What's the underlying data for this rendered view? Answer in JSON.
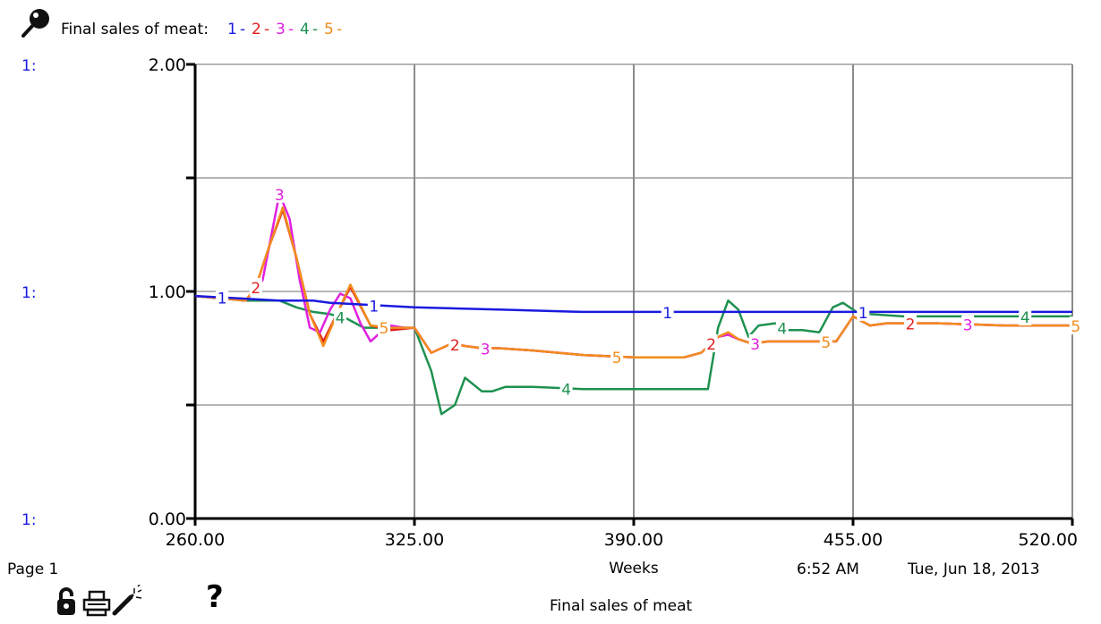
{
  "legend": {
    "title": "Final sales of meat:",
    "entries": [
      {
        "label": "1",
        "sep": "-",
        "color": "#1a1ae0"
      },
      {
        "label": "2",
        "sep": "-",
        "color": "#e02020"
      },
      {
        "label": "3",
        "sep": "-",
        "color": "#e020e0"
      },
      {
        "label": "4",
        "sep": "-",
        "color": "#1e9150"
      },
      {
        "label": "5",
        "sep": "-",
        "color": "#f28c1c"
      }
    ]
  },
  "axis_prefix": "1:",
  "footer": {
    "page": "Page 1",
    "time": "6:52 AM",
    "date": "Tue, Jun 18, 2013",
    "bottom_title": "Final sales of meat"
  },
  "icons": [
    "pin-icon",
    "lock-icon",
    "print-icon",
    "magic-wand-icon",
    "help-icon"
  ],
  "help_glyph": "?",
  "chart_data": {
    "type": "line",
    "title": "Final sales of meat",
    "xlabel": "Weeks",
    "ylabel": "",
    "xlim": [
      260,
      520
    ],
    "ylim": [
      0,
      2
    ],
    "xticks": [
      "260.00",
      "325.00",
      "390.00",
      "455.00",
      "520.00"
    ],
    "yticks": [
      "0.00",
      "1.00",
      "2.00"
    ],
    "grid": true,
    "legend_position": "top-left",
    "series": [
      {
        "name": "1",
        "color": "#1a1ae0",
        "x": [
          260,
          285,
          295,
          300,
          325,
          350,
          375,
          400,
          425,
          440,
          455,
          458,
          465,
          470,
          520
        ],
        "y": [
          0.98,
          0.96,
          0.96,
          0.95,
          0.93,
          0.92,
          0.91,
          0.91,
          0.91,
          0.91,
          0.91,
          0.91,
          0.91,
          0.91,
          0.91
        ]
      },
      {
        "name": "2",
        "color": "#e02020",
        "x": [
          260,
          275,
          278,
          282,
          286,
          290,
          294,
          298,
          302,
          306,
          312,
          318,
          325,
          330,
          336,
          340,
          345,
          350,
          360,
          375,
          390,
          405,
          410,
          415,
          418,
          421,
          425,
          430,
          440,
          450,
          455,
          460,
          465,
          480,
          500,
          520
        ],
        "y": [
          0.98,
          0.96,
          1.02,
          1.2,
          1.36,
          1.15,
          0.9,
          0.78,
          0.9,
          1.02,
          0.85,
          0.83,
          0.84,
          0.73,
          0.77,
          0.76,
          0.75,
          0.75,
          0.74,
          0.72,
          0.71,
          0.71,
          0.73,
          0.8,
          0.81,
          0.79,
          0.77,
          0.78,
          0.78,
          0.78,
          0.89,
          0.85,
          0.86,
          0.86,
          0.85,
          0.85
        ]
      },
      {
        "name": "3",
        "color": "#e020e0",
        "x": [
          260,
          275,
          280,
          285,
          288,
          291,
          294,
          297,
          300,
          303,
          306,
          309,
          312,
          315,
          318,
          322,
          325,
          330,
          336,
          340,
          345,
          350,
          360,
          375,
          390,
          405,
          410,
          415,
          418,
          421,
          425,
          430,
          440,
          450,
          455,
          460,
          465,
          480,
          500,
          520
        ],
        "y": [
          0.98,
          0.96,
          1.05,
          1.43,
          1.32,
          1.05,
          0.84,
          0.82,
          0.92,
          0.99,
          0.97,
          0.86,
          0.78,
          0.82,
          0.85,
          0.84,
          0.84,
          0.73,
          0.77,
          0.76,
          0.75,
          0.75,
          0.74,
          0.72,
          0.71,
          0.71,
          0.73,
          0.8,
          0.81,
          0.79,
          0.77,
          0.78,
          0.78,
          0.78,
          0.89,
          0.85,
          0.86,
          0.86,
          0.85,
          0.85
        ]
      },
      {
        "name": "4",
        "color": "#1e9150",
        "x": [
          260,
          275,
          285,
          290,
          295,
          300,
          305,
          310,
          315,
          320,
          325,
          330,
          333,
          337,
          340,
          345,
          348,
          352,
          360,
          375,
          400,
          412,
          415,
          418,
          421,
          424,
          427,
          432,
          435,
          440,
          445,
          449,
          452,
          456,
          460,
          470,
          490,
          520
        ],
        "y": [
          0.98,
          0.96,
          0.96,
          0.93,
          0.91,
          0.9,
          0.88,
          0.84,
          0.84,
          0.84,
          0.84,
          0.65,
          0.46,
          0.5,
          0.62,
          0.56,
          0.56,
          0.58,
          0.58,
          0.57,
          0.57,
          0.57,
          0.84,
          0.96,
          0.92,
          0.8,
          0.85,
          0.86,
          0.83,
          0.83,
          0.82,
          0.93,
          0.95,
          0.91,
          0.9,
          0.89,
          0.89,
          0.89
        ]
      },
      {
        "name": "5",
        "color": "#f28c1c",
        "x": [
          260,
          275,
          278,
          282,
          286,
          290,
          294,
          298,
          302,
          306,
          312,
          318,
          325,
          330,
          336,
          340,
          345,
          350,
          360,
          375,
          390,
          405,
          410,
          415,
          418,
          421,
          425,
          430,
          440,
          450,
          455,
          460,
          465,
          480,
          500,
          520
        ],
        "y": [
          0.98,
          0.96,
          1.02,
          1.2,
          1.37,
          1.15,
          0.9,
          0.76,
          0.9,
          1.03,
          0.85,
          0.84,
          0.84,
          0.73,
          0.77,
          0.76,
          0.75,
          0.75,
          0.74,
          0.72,
          0.71,
          0.71,
          0.73,
          0.8,
          0.82,
          0.79,
          0.77,
          0.78,
          0.78,
          0.78,
          0.89,
          0.85,
          0.86,
          0.86,
          0.85,
          0.85
        ]
      }
    ],
    "series_labels": [
      {
        "series": "1",
        "x": [
          268,
          313,
          400,
          458
        ]
      },
      {
        "series": "2",
        "x": [
          278,
          337,
          413,
          472
        ]
      },
      {
        "series": "3",
        "x": [
          285,
          346,
          426,
          489
        ]
      },
      {
        "series": "4",
        "x": [
          303,
          370,
          434,
          506
        ]
      },
      {
        "series": "5",
        "x": [
          316,
          385,
          447,
          521
        ]
      }
    ]
  }
}
